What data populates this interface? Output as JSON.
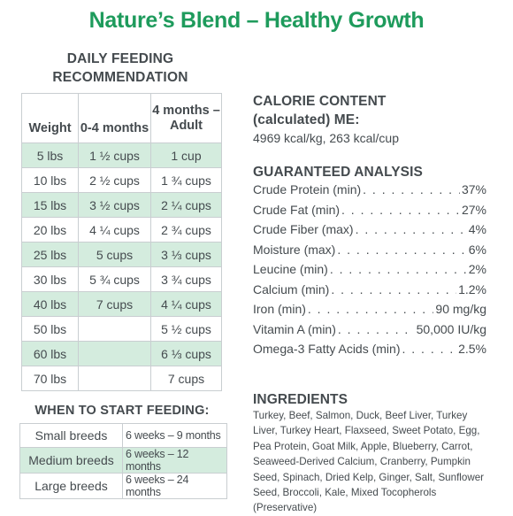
{
  "title": "Nature’s Blend – Healthy Growth",
  "feeding": {
    "heading_line1": "DAILY FEEDING",
    "heading_line2": "RECOMMENDATION",
    "col_weight": "Weight",
    "col_young": "0-4 months",
    "col_adult_line1": "4 months –",
    "col_adult_line2": "Adult",
    "rows": [
      {
        "weight": "5 lbs",
        "young": "1 ½ cups",
        "adult": "1  cup"
      },
      {
        "weight": "10 lbs",
        "young": "2 ½ cups",
        "adult": "1 ¾ cups"
      },
      {
        "weight": "15 lbs",
        "young": "3 ½ cups",
        "adult": "2 ¼ cups"
      },
      {
        "weight": "20 lbs",
        "young": "4 ¼ cups",
        "adult": "2 ¾ cups"
      },
      {
        "weight": "25 lbs",
        "young": "5 cups",
        "adult": "3 ⅓ cups"
      },
      {
        "weight": "30 lbs",
        "young": "5 ¾ cups",
        "adult": "3 ¾ cups"
      },
      {
        "weight": "40 lbs",
        "young": "7 cups",
        "adult": "4 ¼ cups"
      },
      {
        "weight": "50 lbs",
        "young": "",
        "adult": "5 ½ cups"
      },
      {
        "weight": "60 lbs",
        "young": "",
        "adult": "6 ⅓ cups"
      },
      {
        "weight": "70 lbs",
        "young": "",
        "adult": "7 cups"
      }
    ]
  },
  "when": {
    "heading": "WHEN TO START FEEDING:",
    "rows": [
      {
        "breed": "Small breeds",
        "weeks": "6 weeks – 9 months"
      },
      {
        "breed": "Medium breeds",
        "weeks": "6 weeks – 12 months"
      },
      {
        "breed": "Large breeds",
        "weeks": "6 weeks – 24 months"
      }
    ]
  },
  "calorie": {
    "heading_line1": "CALORIE CONTENT",
    "heading_line2": "(calculated) ME:",
    "value": "4969 kcal/kg, 263 kcal/cup"
  },
  "analysis": {
    "heading": "GUARANTEED ANALYSIS",
    "rows": [
      {
        "label": "Crude Protein (min)",
        "value": "37%"
      },
      {
        "label": "Crude Fat (min)",
        "value": "27%"
      },
      {
        "label": "Crude Fiber (max)",
        "value": "4%"
      },
      {
        "label": "Moisture (max)",
        "value": "6%"
      },
      {
        "label": "Leucine (min)",
        "value": "2%"
      },
      {
        "label": "Calcium (min)",
        "value": "1.2%"
      },
      {
        "label": "Iron (min)",
        "value": "90 mg/kg"
      },
      {
        "label": "Vitamin A (min)",
        "value": "50,000 IU/kg"
      },
      {
        "label": "Omega-3 Fatty Acids (min)",
        "value": "2.5%"
      }
    ]
  },
  "ingredients": {
    "heading": "INGREDIENTS",
    "text": "Turkey, Beef, Salmon, Duck, Beef Liver, Turkey Liver, Turkey Heart, Flaxseed, Sweet Potato, Egg, Pea Protein, Goat Milk, Apple, Blueberry, Carrot, Seaweed-Derived Calcium, Cranberry, Pumpkin Seed, Spinach, Dried Kelp, Ginger, Salt, Sunflower Seed, Broccoli, Kale, Mixed Tocopherols (Preservative)"
  },
  "colors": {
    "title_green": "#1e9b5c",
    "row_highlight": "#d4ecde",
    "text": "#454b4f"
  }
}
